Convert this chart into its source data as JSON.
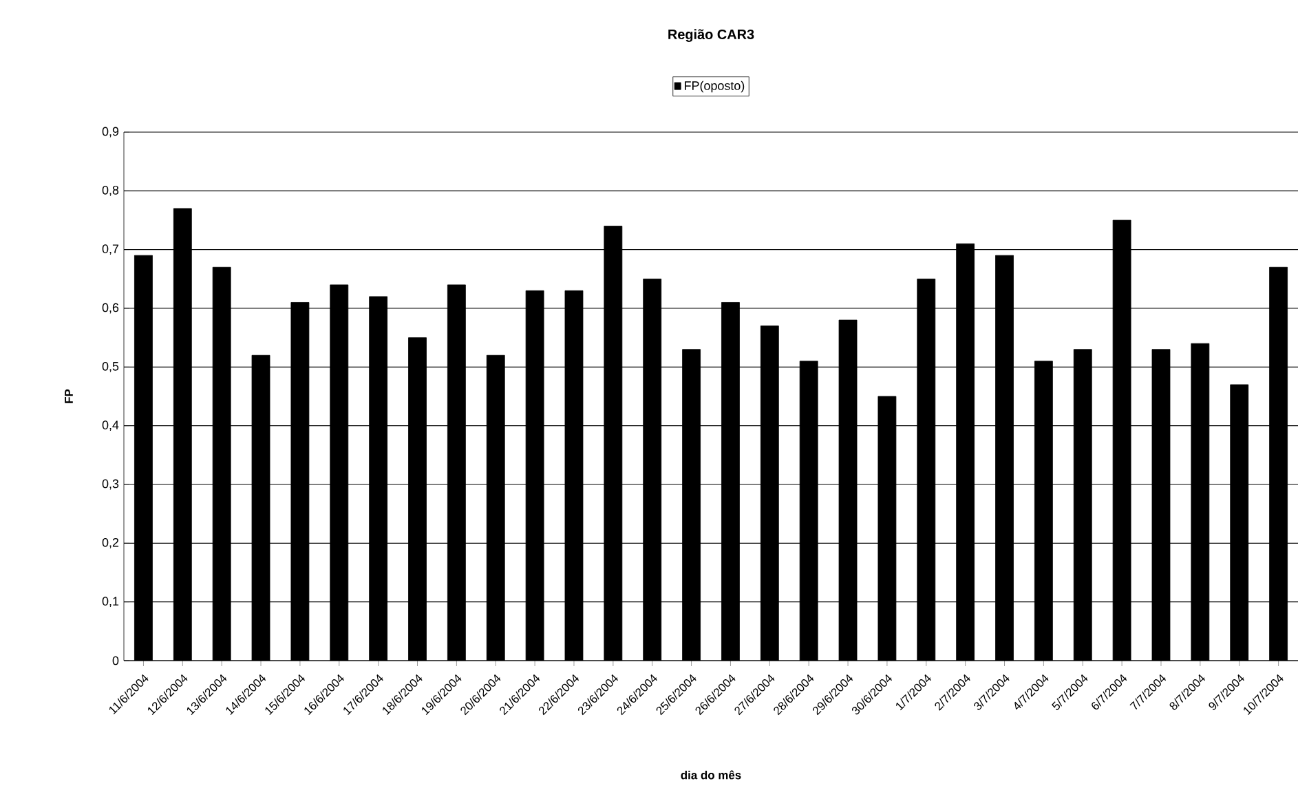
{
  "chart_data": {
    "type": "bar",
    "title": "Região CAR3",
    "xlabel": "dia do mês",
    "ylabel": "FP",
    "categories": [
      "11/6/2004",
      "12/6/2004",
      "13/6/2004",
      "14/6/2004",
      "15/6/2004",
      "16/6/2004",
      "17/6/2004",
      "18/6/2004",
      "19/6/2004",
      "20/6/2004",
      "21/6/2004",
      "22/6/2004",
      "23/6/2004",
      "24/6/2004",
      "25/6/2004",
      "26/6/2004",
      "27/6/2004",
      "28/6/2004",
      "29/6/2004",
      "30/6/2004",
      "1/7/2004",
      "2/7/2004",
      "3/7/2004",
      "4/7/2004",
      "5/7/2004",
      "6/7/2004",
      "7/7/2004",
      "8/7/2004",
      "9/7/2004",
      "10/7/2004"
    ],
    "series": [
      {
        "name": "FP(oposto)",
        "color": "#000000",
        "values": [
          0.69,
          0.77,
          0.67,
          0.52,
          0.61,
          0.64,
          0.62,
          0.55,
          0.64,
          0.52,
          0.63,
          0.63,
          0.74,
          0.65,
          0.53,
          0.61,
          0.57,
          0.51,
          0.58,
          0.45,
          0.65,
          0.71,
          0.69,
          0.51,
          0.53,
          0.75,
          0.53,
          0.54,
          0.47,
          0.67
        ]
      }
    ],
    "ylim": [
      0,
      0.9
    ],
    "yticks": [
      0,
      {
        "value": 0.1,
        "label": "0,1"
      },
      {
        "value": 0.2,
        "label": "0,2"
      },
      {
        "value": 0.3,
        "label": "0,3"
      },
      {
        "value": 0.4,
        "label": "0,4"
      },
      {
        "value": 0.5,
        "label": "0,5"
      },
      {
        "value": 0.6,
        "label": "0,6"
      },
      {
        "value": 0.7,
        "label": "0,7"
      },
      {
        "value": 0.8,
        "label": "0,8"
      },
      {
        "value": 0.9,
        "label": "0,9"
      }
    ],
    "grid": "y",
    "legend": "top"
  }
}
